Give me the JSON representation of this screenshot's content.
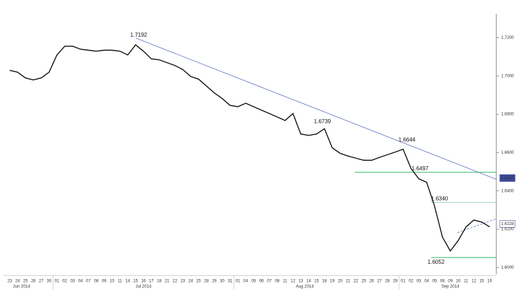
{
  "chart_data": {
    "type": "line",
    "color": "#111111",
    "categories": [
      "23",
      "24",
      "25",
      "26",
      "27",
      "30",
      "01",
      "02",
      "03",
      "04",
      "07",
      "08",
      "09",
      "10",
      "11",
      "14",
      "15",
      "16",
      "17",
      "18",
      "21",
      "22",
      "23",
      "24",
      "25",
      "28",
      "29",
      "30",
      "31",
      "01",
      "04",
      "05",
      "06",
      "07",
      "08",
      "11",
      "12",
      "13",
      "14",
      "15",
      "18",
      "19",
      "20",
      "21",
      "22",
      "25",
      "26",
      "27",
      "28",
      "29",
      "01",
      "02",
      "03",
      "04",
      "05",
      "08",
      "09",
      "10",
      "11",
      "12",
      "15",
      "16"
    ],
    "values": [
      1.703,
      1.702,
      1.699,
      1.698,
      1.699,
      1.702,
      1.711,
      1.7156,
      1.7156,
      1.714,
      1.7135,
      1.713,
      1.7135,
      1.7135,
      1.713,
      1.711,
      1.7163,
      1.713,
      1.709,
      1.7085,
      1.707,
      1.7055,
      1.7034,
      1.6998,
      1.6984,
      1.6948,
      1.6912,
      1.6883,
      1.6847,
      1.684,
      1.6858,
      1.684,
      1.6822,
      1.6804,
      1.6786,
      1.6768,
      1.6804,
      1.6697,
      1.669,
      1.6697,
      1.6725,
      1.6625,
      1.6596,
      1.6582,
      1.6571,
      1.656,
      1.656,
      1.6575,
      1.6589,
      1.6603,
      1.6618,
      1.6517,
      1.6463,
      1.6445,
      1.632,
      1.6158,
      1.6086,
      1.614,
      1.6212,
      1.6248,
      1.6237,
      1.6212
    ],
    "months": [
      "Jun 2014",
      "Jul 2014",
      "Aug 2014",
      "Sep 2014"
    ],
    "ylim": [
      1.5965,
      1.7325
    ],
    "yticks": [
      {
        "value": 1.6,
        "label": "1.6000"
      },
      {
        "value": 1.62,
        "label": "1.6200"
      },
      {
        "value": 1.64,
        "label": "1.6400"
      },
      {
        "value": 1.66,
        "label": "1.6600"
      },
      {
        "value": 1.68,
        "label": "1.6800"
      },
      {
        "value": 1.7,
        "label": "1.7000"
      },
      {
        "value": 1.72,
        "label": "1.7200"
      }
    ],
    "annotations": [
      {
        "label": "1.7192",
        "value": 1.7192
      },
      {
        "label": "1.6739",
        "value": 1.6739
      },
      {
        "label": "1.6644",
        "value": 1.6644
      },
      {
        "label": "1.6497",
        "value": 1.6497
      },
      {
        "label": "1.6340",
        "value": 1.634
      },
      {
        "label": "1.6052",
        "value": 1.6052
      }
    ],
    "price_markers": [
      {
        "label": "1.6467",
        "value": 1.6467,
        "color": "#3a4a9a"
      },
      {
        "label": "1.6228",
        "value": 1.6228,
        "color": "#ffffff"
      }
    ]
  }
}
